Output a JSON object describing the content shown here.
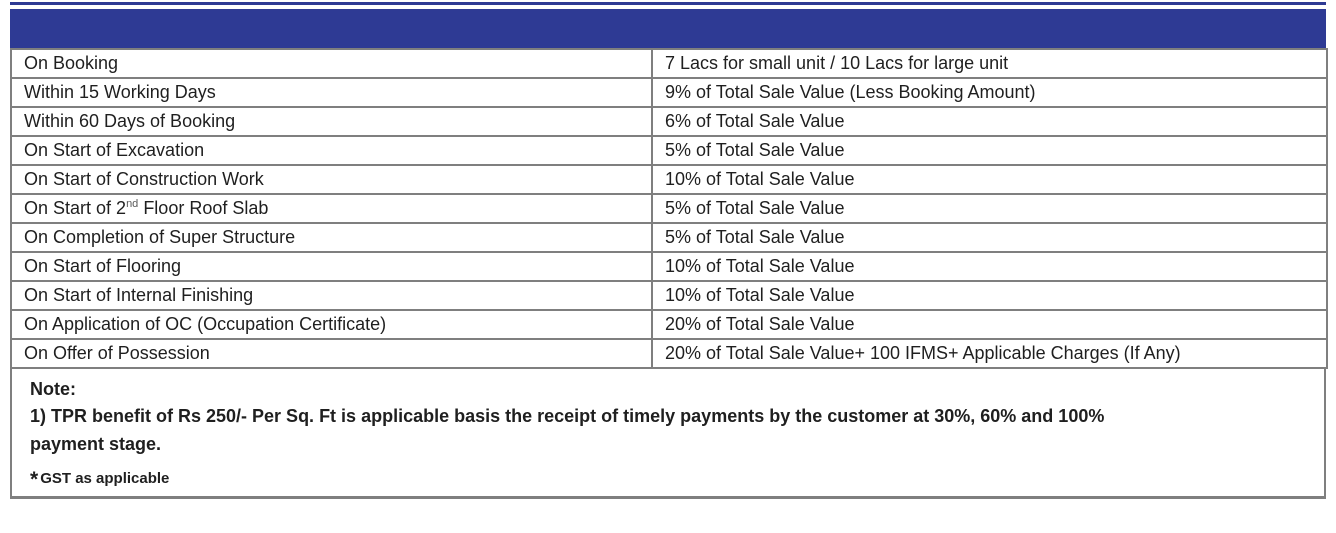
{
  "page": {
    "accent_color": "#2e3a94",
    "border_color": "#7f7f7f",
    "text_color": "#1f1f1f",
    "background": "#ffffff"
  },
  "header_bar": {
    "color": "#2e3a94",
    "title": ""
  },
  "table": {
    "rows": [
      {
        "milestone": "On Booking",
        "amount": "7 Lacs for small unit / 10 Lacs for large unit"
      },
      {
        "milestone": "Within 15 Working Days",
        "amount": "9% of Total Sale Value (Less Booking Amount)"
      },
      {
        "milestone": "Within 60 Days of Booking",
        "amount": "6% of Total Sale Value"
      },
      {
        "milestone": "On Start of Excavation",
        "amount": "5% of Total Sale Value"
      },
      {
        "milestone": "On Start of Construction Work",
        "amount": "10% of Total Sale Value"
      },
      {
        "milestone_prefix": "On Start of 2",
        "milestone_sup": "nd",
        "milestone_suffix": " Floor Roof Slab",
        "amount": "5% of Total Sale Value"
      },
      {
        "milestone": "On Completion of Super Structure",
        "amount": "5% of Total Sale Value"
      },
      {
        "milestone": "On Start of Flooring",
        "amount": "10% of Total Sale Value"
      },
      {
        "milestone": "On Start of Internal Finishing",
        "amount": "10% of Total Sale Value"
      },
      {
        "milestone": "On Application of OC (Occupation Certificate)",
        "amount": "20% of Total Sale Value"
      },
      {
        "milestone": "On Offer of Possession",
        "amount": "20% of Total Sale Value+ 100 IFMS+ Applicable Charges (If Any)"
      }
    ]
  },
  "note": {
    "heading": "Note:",
    "line1": "1) TPR benefit of Rs 250/- Per Sq. Ft is applicable basis the receipt of timely payments by the customer at 30%, 60% and 100%",
    "line2": "payment stage.",
    "gst_symbol": "*",
    "gst_text": "GST as applicable"
  }
}
